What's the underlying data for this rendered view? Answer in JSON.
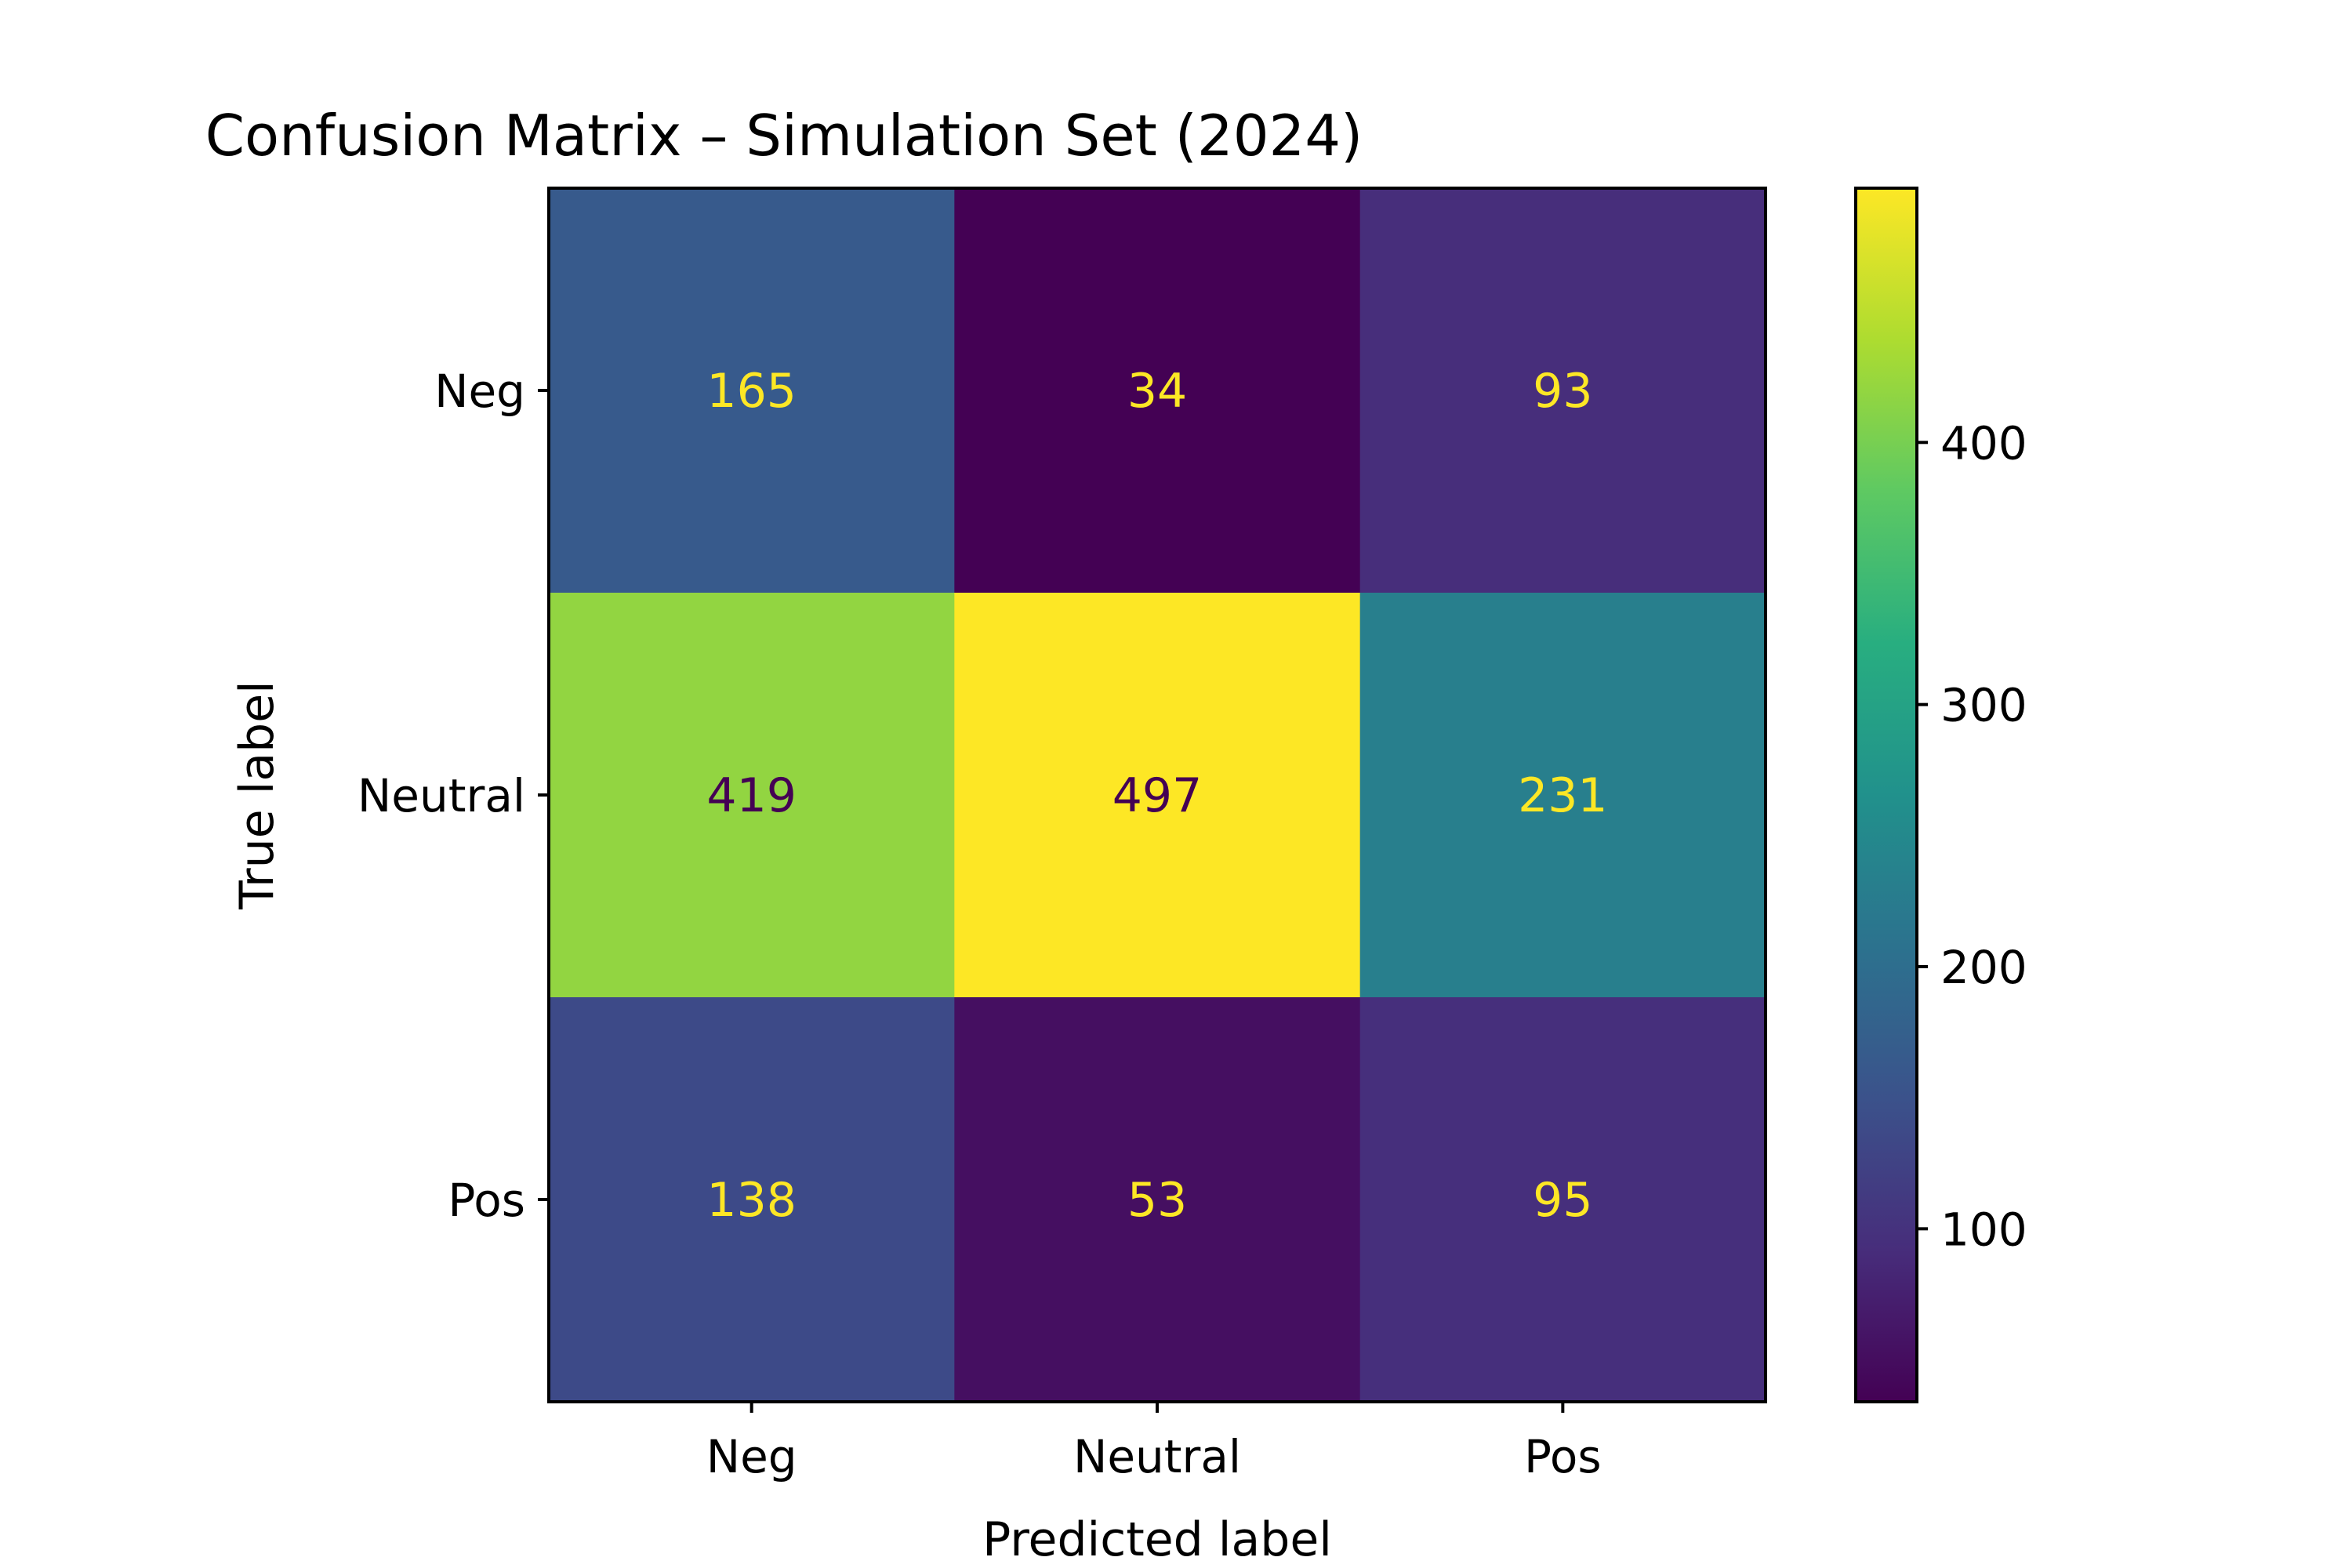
{
  "chart_data": {
    "type": "heatmap",
    "title": "Confusion Matrix – Simulation Set (2024)",
    "xlabel": "Predicted label",
    "ylabel": "True label",
    "x_categories": [
      "Neg",
      "Neutral",
      "Pos"
    ],
    "y_categories": [
      "Neg",
      "Neutral",
      "Pos"
    ],
    "values": [
      [
        165,
        34,
        93
      ],
      [
        419,
        497,
        231
      ],
      [
        138,
        53,
        95
      ]
    ],
    "colormap": "viridis",
    "color_range": [
      34,
      497
    ],
    "colorbar_ticks": [
      100,
      200,
      300,
      400
    ],
    "colorbar_tick_labels": [
      "100",
      "200",
      "300",
      "400"
    ],
    "text_color_light": "#fde725",
    "text_color_dark": "#440154",
    "legend": "none",
    "grid": false
  }
}
